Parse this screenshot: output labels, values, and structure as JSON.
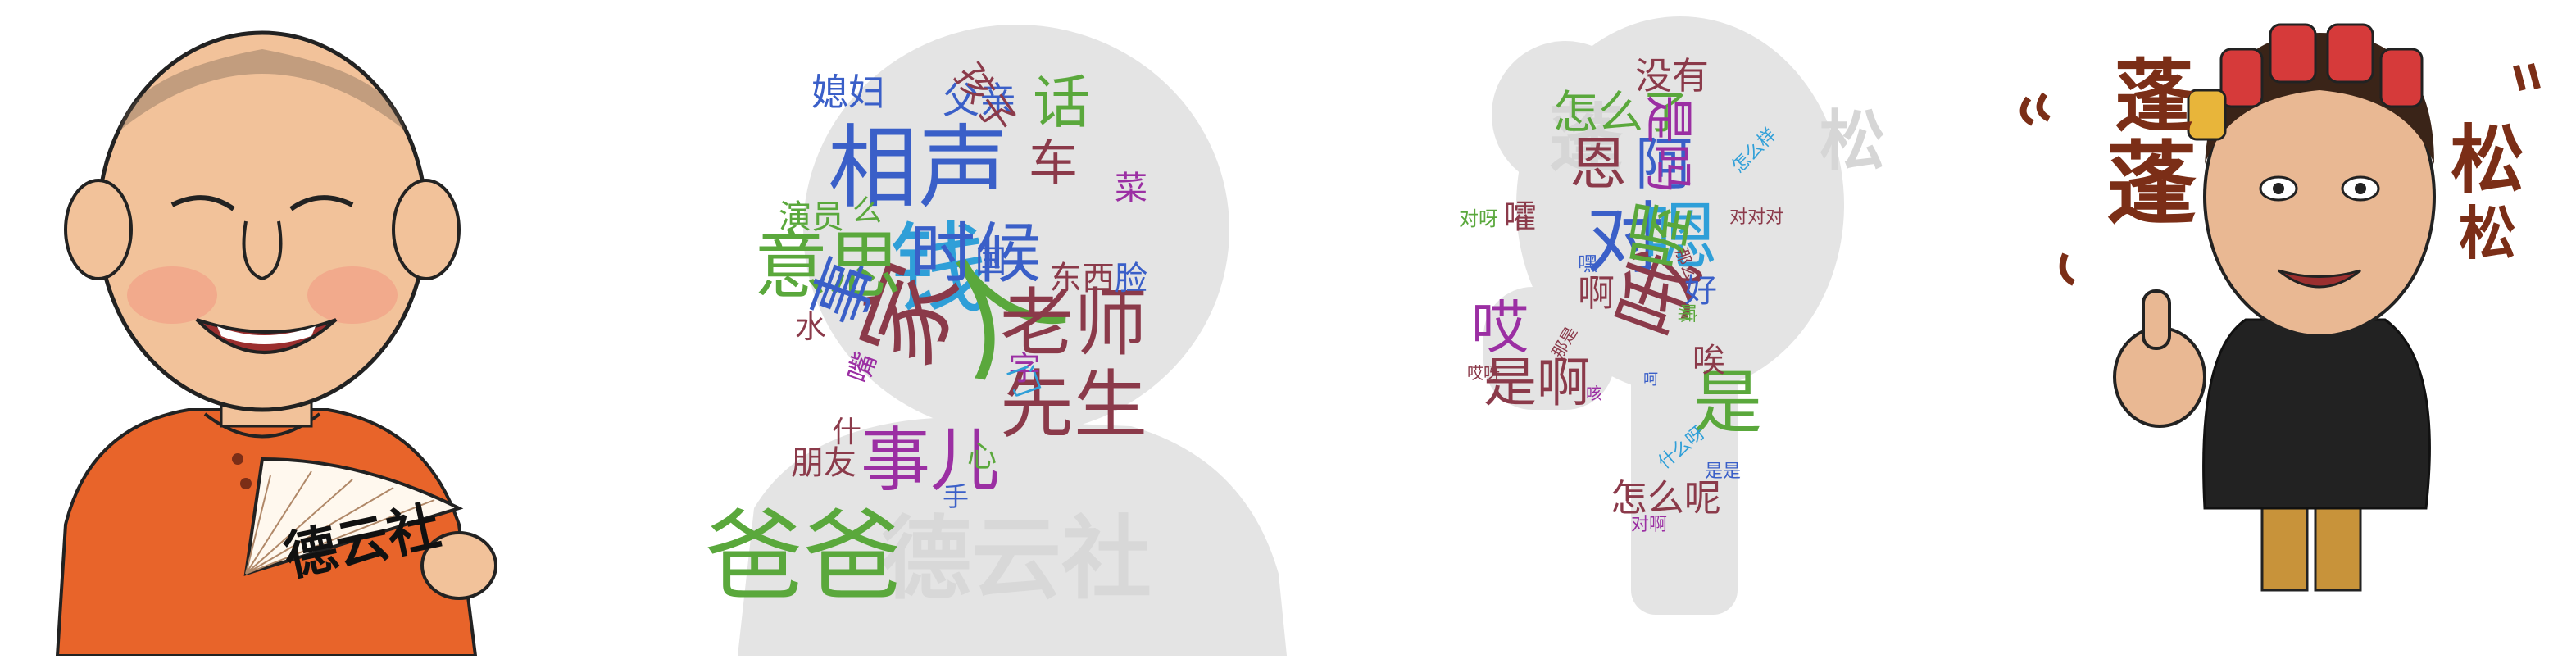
{
  "colors": {
    "gown": "#e8642a",
    "skin": "#f2c29a",
    "silhouette": "#e4e4e4",
    "calligraphy": "#7b2e17",
    "cloud": [
      "#5aa83c",
      "#3a5fc8",
      "#8b3a4a",
      "#9b2fa3",
      "#2f9fd8",
      "#4aa34a"
    ]
  },
  "fan_text": "德云社",
  "left_cloud": [
    {
      "t": "相声",
      "c": "#3a5fc8"
    },
    {
      "t": "钱",
      "c": "#2f9fd8"
    },
    {
      "t": "人",
      "c": "#5aa83c"
    },
    {
      "t": "家",
      "c": "#8b3a4a"
    },
    {
      "t": "爸爸",
      "c": "#5aa83c"
    },
    {
      "t": "老师",
      "c": "#8b3a4a"
    },
    {
      "t": "先生",
      "c": "#8b3a4a"
    },
    {
      "t": "事儿",
      "c": "#9b2fa3"
    },
    {
      "t": "意思",
      "c": "#5aa83c"
    },
    {
      "t": "时候",
      "c": "#3a5fc8"
    },
    {
      "t": "话",
      "c": "#5aa83c"
    },
    {
      "t": "车",
      "c": "#8b3a4a"
    },
    {
      "t": "事",
      "c": "#3a5fc8"
    },
    {
      "t": "媳妇",
      "c": "#3a5fc8"
    },
    {
      "t": "父亲",
      "c": "#3a5fc8"
    },
    {
      "t": "孩子",
      "c": "#8b3a4a"
    },
    {
      "t": "菜",
      "c": "#9b2fa3"
    },
    {
      "t": "演员",
      "c": "#5aa83c"
    },
    {
      "t": "么",
      "c": "#5aa83c"
    },
    {
      "t": "国",
      "c": "#3a5fc8"
    },
    {
      "t": "东西",
      "c": "#8b3a4a"
    },
    {
      "t": "脸",
      "c": "#3a5fc8"
    },
    {
      "t": "水",
      "c": "#8b3a4a"
    },
    {
      "t": "嘴",
      "c": "#9b2fa3"
    },
    {
      "t": "字",
      "c": "#9b2fa3"
    },
    {
      "t": "门",
      "c": "#2f9fd8"
    },
    {
      "t": "什",
      "c": "#8b3a4a"
    },
    {
      "t": "朋友",
      "c": "#8b3a4a"
    },
    {
      "t": "心",
      "c": "#5aa83c"
    },
    {
      "t": "手",
      "c": "#3a5fc8"
    }
  ],
  "right_cloud": [
    {
      "t": "没有",
      "c": "#8b3a4a"
    },
    {
      "t": "怎么了",
      "c": "#5aa83c"
    },
    {
      "t": "恩",
      "c": "#8b3a4a"
    },
    {
      "t": "阿",
      "c": "#3a5fc8"
    },
    {
      "t": "是吗",
      "c": "#9b2fa3"
    },
    {
      "t": "对",
      "c": "#3a5fc8"
    },
    {
      "t": "嗯",
      "c": "#2f9fd8"
    },
    {
      "t": "哦",
      "c": "#8b3a4a"
    },
    {
      "t": "喔",
      "c": "#5aa83c"
    },
    {
      "t": "是",
      "c": "#5aa83c"
    },
    {
      "t": "哎",
      "c": "#9b2fa3"
    },
    {
      "t": "是啊",
      "c": "#8b3a4a"
    },
    {
      "t": "啊",
      "c": "#8b3a4a"
    },
    {
      "t": "好",
      "c": "#3a5fc8"
    },
    {
      "t": "唉",
      "c": "#8b3a4a"
    },
    {
      "t": "怎么呢",
      "c": "#8b3a4a"
    },
    {
      "t": "嚯",
      "c": "#8b3a4a"
    },
    {
      "t": "对呀",
      "c": "#5aa83c"
    },
    {
      "t": "怎么样",
      "c": "#2f9fd8"
    },
    {
      "t": "对对对",
      "c": "#8b3a4a"
    },
    {
      "t": "嘿",
      "c": "#3a5fc8"
    },
    {
      "t": "嘛",
      "c": "#5aa83c"
    },
    {
      "t": "哎呀",
      "c": "#8b3a4a"
    },
    {
      "t": "那是",
      "c": "#8b3a4a"
    },
    {
      "t": "什么呀",
      "c": "#2f9fd8"
    },
    {
      "t": "是是",
      "c": "#3a5fc8"
    },
    {
      "t": "对啊",
      "c": "#9b2fa3"
    },
    {
      "t": "咳",
      "c": "#9b2fa3"
    },
    {
      "t": "呵",
      "c": "#3a5fc8"
    },
    {
      "t": "那么",
      "c": "#8b3a4a"
    }
  ],
  "calligraphy_text": [
    "蓬",
    "蓬",
    "松",
    "松"
  ]
}
